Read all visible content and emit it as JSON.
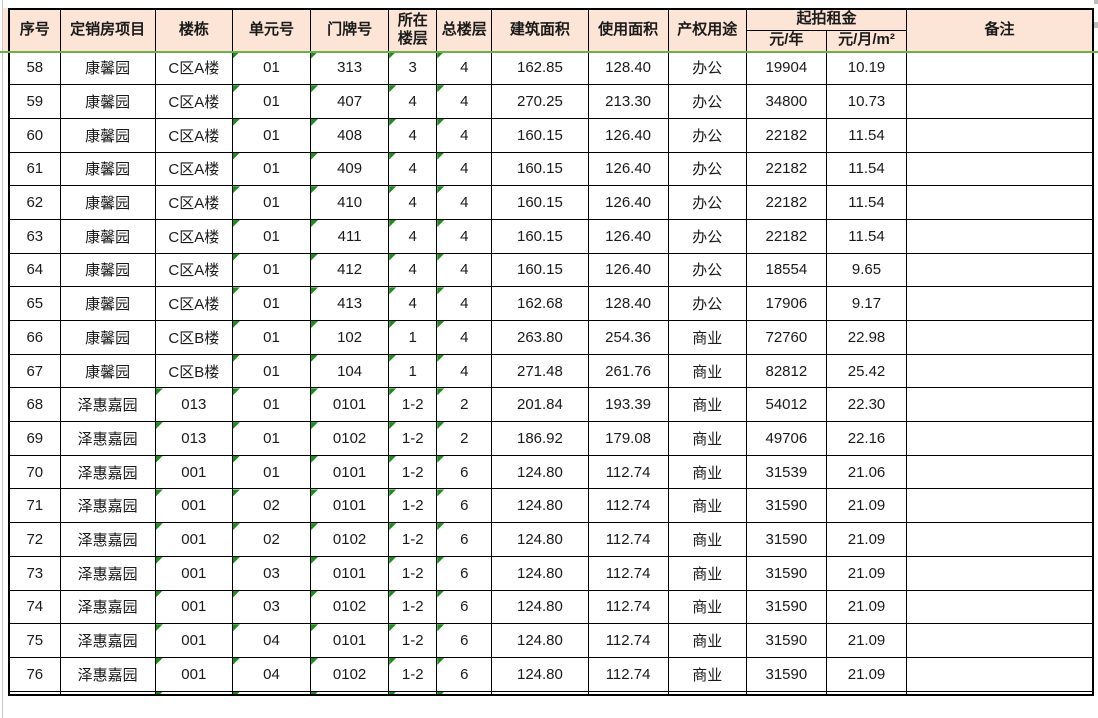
{
  "colors": {
    "header_bg": "#fce4d6",
    "freeze_line": "#70ad47",
    "flag_triangle": "#1e8c1e",
    "grid": "#000000"
  },
  "table": {
    "headers": {
      "seq": "序号",
      "project": "定销房项目",
      "building": "楼栋",
      "unit": "单元号",
      "door": "门牌号",
      "floor": "所在楼层",
      "total": "总楼层",
      "build_area": "建筑面积",
      "use_area": "使用面积",
      "usage": "产权用途",
      "rent_group": "起拍租金",
      "rent_year": "元/年",
      "rent_rate": "元/月/m²",
      "remark": "备注"
    },
    "rows": [
      {
        "seq": "58",
        "project": "康馨园",
        "building": "C区A楼",
        "unit": "01",
        "door": "313",
        "floor": "3",
        "total": "4",
        "build_area": "162.85",
        "use_area": "128.40",
        "usage": "办公",
        "rent_year": "19904",
        "rent_rate": "10.19",
        "remark": "",
        "flagged": [
          "unit",
          "door",
          "floor",
          "total"
        ]
      },
      {
        "seq": "59",
        "project": "康馨园",
        "building": "C区A楼",
        "unit": "01",
        "door": "407",
        "floor": "4",
        "total": "4",
        "build_area": "270.25",
        "use_area": "213.30",
        "usage": "办公",
        "rent_year": "34800",
        "rent_rate": "10.73",
        "remark": "",
        "flagged": [
          "unit",
          "door",
          "floor",
          "total"
        ]
      },
      {
        "seq": "60",
        "project": "康馨园",
        "building": "C区A楼",
        "unit": "01",
        "door": "408",
        "floor": "4",
        "total": "4",
        "build_area": "160.15",
        "use_area": "126.40",
        "usage": "办公",
        "rent_year": "22182",
        "rent_rate": "11.54",
        "remark": "",
        "flagged": [
          "unit",
          "door",
          "floor",
          "total"
        ]
      },
      {
        "seq": "61",
        "project": "康馨园",
        "building": "C区A楼",
        "unit": "01",
        "door": "409",
        "floor": "4",
        "total": "4",
        "build_area": "160.15",
        "use_area": "126.40",
        "usage": "办公",
        "rent_year": "22182",
        "rent_rate": "11.54",
        "remark": "",
        "flagged": [
          "unit",
          "door",
          "floor",
          "total"
        ]
      },
      {
        "seq": "62",
        "project": "康馨园",
        "building": "C区A楼",
        "unit": "01",
        "door": "410",
        "floor": "4",
        "total": "4",
        "build_area": "160.15",
        "use_area": "126.40",
        "usage": "办公",
        "rent_year": "22182",
        "rent_rate": "11.54",
        "remark": "",
        "flagged": [
          "unit",
          "door",
          "floor",
          "total"
        ]
      },
      {
        "seq": "63",
        "project": "康馨园",
        "building": "C区A楼",
        "unit": "01",
        "door": "411",
        "floor": "4",
        "total": "4",
        "build_area": "160.15",
        "use_area": "126.40",
        "usage": "办公",
        "rent_year": "22182",
        "rent_rate": "11.54",
        "remark": "",
        "flagged": [
          "unit",
          "door",
          "floor",
          "total"
        ]
      },
      {
        "seq": "64",
        "project": "康馨园",
        "building": "C区A楼",
        "unit": "01",
        "door": "412",
        "floor": "4",
        "total": "4",
        "build_area": "160.15",
        "use_area": "126.40",
        "usage": "办公",
        "rent_year": "18554",
        "rent_rate": "9.65",
        "remark": "",
        "flagged": [
          "unit",
          "door",
          "floor",
          "total"
        ]
      },
      {
        "seq": "65",
        "project": "康馨园",
        "building": "C区A楼",
        "unit": "01",
        "door": "413",
        "floor": "4",
        "total": "4",
        "build_area": "162.68",
        "use_area": "128.40",
        "usage": "办公",
        "rent_year": "17906",
        "rent_rate": "9.17",
        "remark": "",
        "flagged": [
          "unit",
          "door",
          "floor",
          "total"
        ]
      },
      {
        "seq": "66",
        "project": "康馨园",
        "building": "C区B楼",
        "unit": "01",
        "door": "102",
        "floor": "1",
        "total": "4",
        "build_area": "263.80",
        "use_area": "254.36",
        "usage": "商业",
        "rent_year": "72760",
        "rent_rate": "22.98",
        "remark": "",
        "flagged": [
          "unit",
          "door",
          "floor",
          "total"
        ]
      },
      {
        "seq": "67",
        "project": "康馨园",
        "building": "C区B楼",
        "unit": "01",
        "door": "104",
        "floor": "1",
        "total": "4",
        "build_area": "271.48",
        "use_area": "261.76",
        "usage": "商业",
        "rent_year": "82812",
        "rent_rate": "25.42",
        "remark": "",
        "flagged": [
          "unit",
          "door",
          "floor",
          "total"
        ]
      },
      {
        "seq": "68",
        "project": "泽惠嘉园",
        "building": "013",
        "unit": "01",
        "door": "0101",
        "floor": "1-2",
        "total": "2",
        "build_area": "201.84",
        "use_area": "193.39",
        "usage": "商业",
        "rent_year": "54012",
        "rent_rate": "22.30",
        "remark": "",
        "flagged": [
          "building",
          "unit",
          "door",
          "floor",
          "total"
        ]
      },
      {
        "seq": "69",
        "project": "泽惠嘉园",
        "building": "013",
        "unit": "01",
        "door": "0102",
        "floor": "1-2",
        "total": "2",
        "build_area": "186.92",
        "use_area": "179.08",
        "usage": "商业",
        "rent_year": "49706",
        "rent_rate": "22.16",
        "remark": "",
        "flagged": [
          "building",
          "unit",
          "door",
          "floor",
          "total"
        ]
      },
      {
        "seq": "70",
        "project": "泽惠嘉园",
        "building": "001",
        "unit": "01",
        "door": "0101",
        "floor": "1-2",
        "total": "6",
        "build_area": "124.80",
        "use_area": "112.74",
        "usage": "商业",
        "rent_year": "31539",
        "rent_rate": "21.06",
        "remark": "",
        "flagged": [
          "building",
          "unit",
          "door",
          "floor",
          "total"
        ]
      },
      {
        "seq": "71",
        "project": "泽惠嘉园",
        "building": "001",
        "unit": "02",
        "door": "0101",
        "floor": "1-2",
        "total": "6",
        "build_area": "124.80",
        "use_area": "112.74",
        "usage": "商业",
        "rent_year": "31590",
        "rent_rate": "21.09",
        "remark": "",
        "flagged": [
          "building",
          "unit",
          "door",
          "floor",
          "total"
        ]
      },
      {
        "seq": "72",
        "project": "泽惠嘉园",
        "building": "001",
        "unit": "02",
        "door": "0102",
        "floor": "1-2",
        "total": "6",
        "build_area": "124.80",
        "use_area": "112.74",
        "usage": "商业",
        "rent_year": "31590",
        "rent_rate": "21.09",
        "remark": "",
        "flagged": [
          "building",
          "unit",
          "door",
          "floor",
          "total"
        ]
      },
      {
        "seq": "73",
        "project": "泽惠嘉园",
        "building": "001",
        "unit": "03",
        "door": "0101",
        "floor": "1-2",
        "total": "6",
        "build_area": "124.80",
        "use_area": "112.74",
        "usage": "商业",
        "rent_year": "31590",
        "rent_rate": "21.09",
        "remark": "",
        "flagged": [
          "building",
          "unit",
          "door",
          "floor",
          "total"
        ]
      },
      {
        "seq": "74",
        "project": "泽惠嘉园",
        "building": "001",
        "unit": "03",
        "door": "0102",
        "floor": "1-2",
        "total": "6",
        "build_area": "124.80",
        "use_area": "112.74",
        "usage": "商业",
        "rent_year": "31590",
        "rent_rate": "21.09",
        "remark": "",
        "flagged": [
          "building",
          "unit",
          "door",
          "floor",
          "total"
        ]
      },
      {
        "seq": "75",
        "project": "泽惠嘉园",
        "building": "001",
        "unit": "04",
        "door": "0101",
        "floor": "1-2",
        "total": "6",
        "build_area": "124.80",
        "use_area": "112.74",
        "usage": "商业",
        "rent_year": "31590",
        "rent_rate": "21.09",
        "remark": "",
        "flagged": [
          "building",
          "unit",
          "door",
          "floor",
          "total"
        ]
      },
      {
        "seq": "76",
        "project": "泽惠嘉园",
        "building": "001",
        "unit": "04",
        "door": "0102",
        "floor": "1-2",
        "total": "6",
        "build_area": "124.80",
        "use_area": "112.74",
        "usage": "商业",
        "rent_year": "31590",
        "rent_rate": "21.09",
        "remark": "",
        "flagged": [
          "building",
          "unit",
          "door",
          "floor",
          "total"
        ]
      }
    ],
    "partial_row": {
      "flagged": [
        "building",
        "unit",
        "door",
        "floor",
        "total"
      ]
    }
  }
}
